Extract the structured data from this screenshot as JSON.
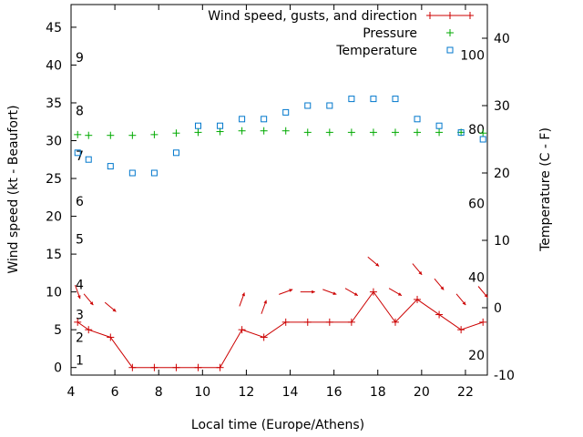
{
  "chart_data": {
    "type": "line",
    "xlabel": "Local time (Europe/Athens)",
    "ylabel": "Wind speed (kt - Beaufort)",
    "y2label": "Temperature (C - F)",
    "xlim": [
      4,
      23
    ],
    "ylim": [
      -1,
      48
    ],
    "y2lim": [
      -10,
      45
    ],
    "x_ticks": [
      4,
      6,
      8,
      10,
      12,
      14,
      16,
      18,
      20,
      22
    ],
    "y_ticks": [
      0,
      5,
      10,
      15,
      20,
      25,
      30,
      35,
      40,
      45
    ],
    "y2_ticks": [
      -10,
      0,
      10,
      20,
      30,
      40
    ],
    "grid": false,
    "legend_position": "top-right",
    "colors": {
      "wind": "#cc0000",
      "pressure": "#00aa00",
      "temperature": "#0077cc"
    },
    "beaufort_labels": [
      {
        "label": "1",
        "y": 1
      },
      {
        "label": "2",
        "y": 4
      },
      {
        "label": "3",
        "y": 7
      },
      {
        "label": "4",
        "y": 11
      },
      {
        "label": "5",
        "y": 17
      },
      {
        "label": "6",
        "y": 22
      },
      {
        "label": "7",
        "y": 28
      },
      {
        "label": "8",
        "y": 34
      },
      {
        "label": "9",
        "y": 41
      }
    ],
    "fahrenheit_labels": [
      {
        "label": "20",
        "y2": -7
      },
      {
        "label": "40",
        "y2": 4.5
      },
      {
        "label": "60",
        "y2": 15.5
      },
      {
        "label": "80",
        "y2": 26.5
      },
      {
        "label": "100",
        "y2": 37.5
      }
    ],
    "series": [
      {
        "name": "Wind speed, gusts, and direction",
        "axis": "y",
        "style": "line-plus",
        "x": [
          4.3,
          4.8,
          5.8,
          6.8,
          7.8,
          8.8,
          9.8,
          10.8,
          11.8,
          12.8,
          13.8,
          14.8,
          15.8,
          16.8,
          17.8,
          18.8,
          19.8,
          20.8,
          21.8,
          22.8
        ],
        "y": [
          6,
          5,
          4,
          0,
          0,
          0,
          0,
          0,
          5,
          4,
          6,
          6,
          6,
          6,
          10,
          6,
          9,
          7,
          5,
          6
        ],
        "direction_deg": [
          340,
          320,
          310,
          null,
          null,
          null,
          null,
          null,
          200,
          200,
          250,
          270,
          290,
          300,
          310,
          300,
          320,
          320,
          320,
          320
        ]
      },
      {
        "name": "Pressure",
        "axis": "y",
        "style": "plus",
        "x": [
          4.3,
          4.8,
          5.8,
          6.8,
          7.8,
          8.8,
          9.8,
          10.8,
          11.8,
          12.8,
          13.8,
          14.8,
          15.8,
          16.8,
          17.8,
          18.8,
          19.8,
          20.8,
          21.8,
          22.8
        ],
        "y": [
          30.8,
          30.7,
          30.7,
          30.7,
          30.8,
          31.0,
          31.1,
          31.2,
          31.3,
          31.3,
          31.3,
          31.1,
          31.1,
          31.1,
          31.1,
          31.1,
          31.1,
          31.1,
          31.1,
          31.0
        ]
      },
      {
        "name": "Temperature",
        "axis": "y2",
        "style": "square",
        "x": [
          4.3,
          4.8,
          5.8,
          6.8,
          7.8,
          8.8,
          9.8,
          10.8,
          11.8,
          12.8,
          13.8,
          14.8,
          15.8,
          16.8,
          17.8,
          18.8,
          19.8,
          20.8,
          21.8,
          22.8
        ],
        "y": [
          23,
          22,
          21,
          20,
          20,
          23,
          27,
          27,
          28,
          28,
          29,
          30,
          30,
          31,
          31,
          31,
          28,
          27,
          26,
          25
        ]
      }
    ]
  }
}
